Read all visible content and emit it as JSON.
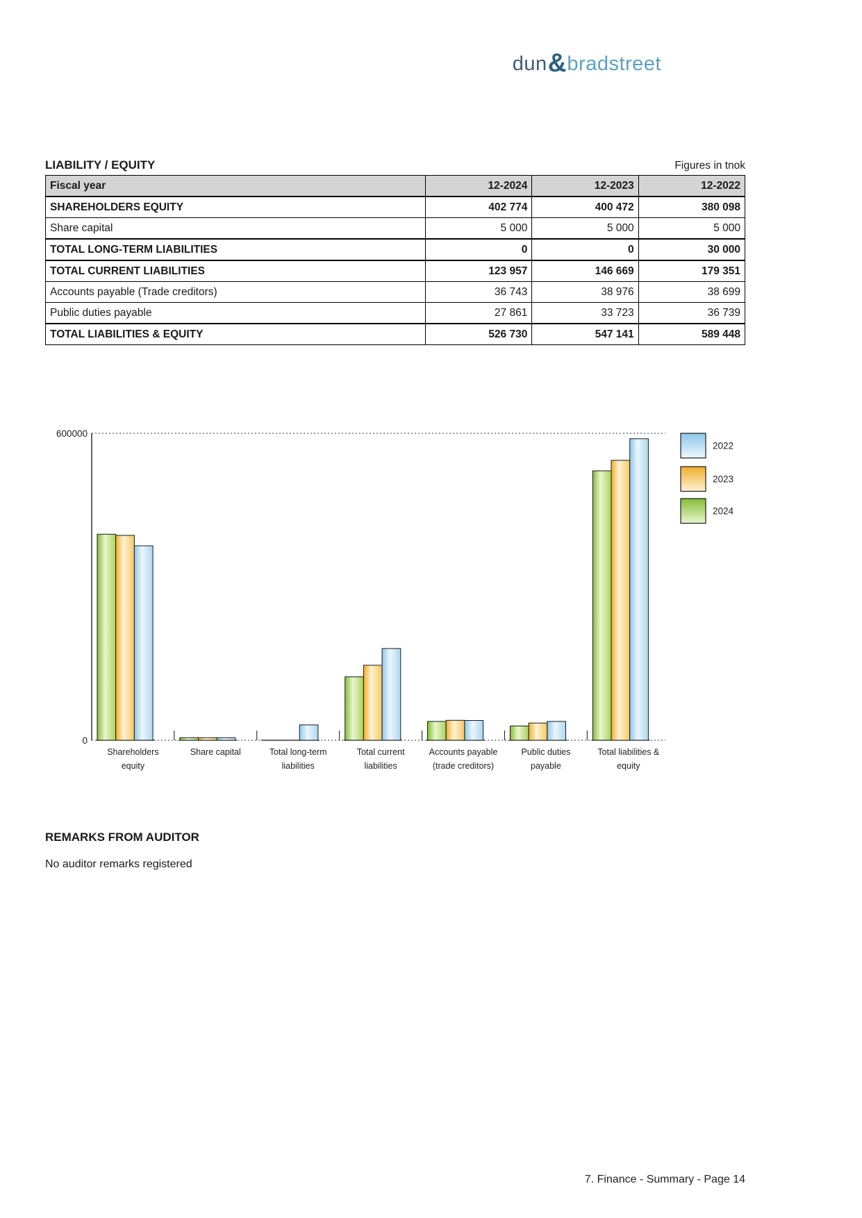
{
  "logo": {
    "part1": "dun",
    "amp": "&",
    "part2": "bradstreet",
    "color_part1": "#3f5c75",
    "color_amp": "#2d6180",
    "color_part2": "#5fa0c0"
  },
  "header": {
    "title": "LIABILITY / EQUITY",
    "unit_note": "Figures in tnok"
  },
  "table": {
    "columns": [
      "Fiscal year",
      "12-2024",
      "12-2023",
      "12-2022"
    ],
    "rows": [
      {
        "label": "SHAREHOLDERS EQUITY",
        "values": [
          "402 774",
          "400 472",
          "380 098"
        ],
        "bold": true
      },
      {
        "label": "Share capital",
        "values": [
          "5 000",
          "5 000",
          "5 000"
        ],
        "bold": false
      },
      {
        "label": "TOTAL LONG-TERM LIABILITIES",
        "values": [
          "0",
          "0",
          "30 000"
        ],
        "bold": true
      },
      {
        "label": "TOTAL CURRENT LIABILITIES",
        "values": [
          "123 957",
          "146 669",
          "179 351"
        ],
        "bold": true
      },
      {
        "label": "Accounts payable (Trade creditors)",
        "values": [
          "36 743",
          "38 976",
          "38 699"
        ],
        "bold": false
      },
      {
        "label": "Public duties payable",
        "values": [
          "27 861",
          "33 723",
          "36 739"
        ],
        "bold": false
      },
      {
        "label": "TOTAL LIABILITIES & EQUITY",
        "values": [
          "526 730",
          "547 141",
          "589 448"
        ],
        "bold": true
      }
    ]
  },
  "chart_data": {
    "type": "bar",
    "title": "",
    "xlabel": "",
    "ylabel": "",
    "ylim": [
      0,
      600000
    ],
    "ytick_values": [
      0,
      600000
    ],
    "ytick_labels": [
      "0",
      "600000"
    ],
    "grid": "dotted horizontal line at 600000; dotted baseline at 0",
    "legend_position": "top-right outside plot",
    "categories": [
      [
        "Shareholders",
        "equity"
      ],
      [
        "Share capital"
      ],
      [
        "Total long-term",
        "liabilities"
      ],
      [
        "Total current",
        "liabilities"
      ],
      [
        "Accounts payable",
        "(trade creditors)"
      ],
      [
        "Public duties",
        "payable"
      ],
      [
        "Total liabilities &",
        "equity"
      ]
    ],
    "series": [
      {
        "name": "2024",
        "c_dark": "#84bd35",
        "c_light": "#e9f6cf",
        "c_mid": "#a9d35e",
        "values": [
          402774,
          5000,
          0,
          123957,
          36743,
          27861,
          526730
        ]
      },
      {
        "name": "2023",
        "c_dark": "#f1ae2d",
        "c_light": "#fdf3d6",
        "c_mid": "#f7c75f",
        "values": [
          400472,
          5000,
          0,
          146669,
          38976,
          33723,
          547141
        ]
      },
      {
        "name": "2022",
        "c_dark": "#8fc7ea",
        "c_light": "#ecf6fd",
        "c_mid": "#add7f2",
        "values": [
          380098,
          5000,
          30000,
          179351,
          38699,
          36739,
          589448
        ]
      }
    ],
    "legend": [
      "2022",
      "2023",
      "2024"
    ]
  },
  "remarks": {
    "title": "REMARKS FROM AUDITOR",
    "body": "No auditor remarks registered"
  },
  "footer": {
    "text": "7. Finance - Summary - Page 14"
  }
}
